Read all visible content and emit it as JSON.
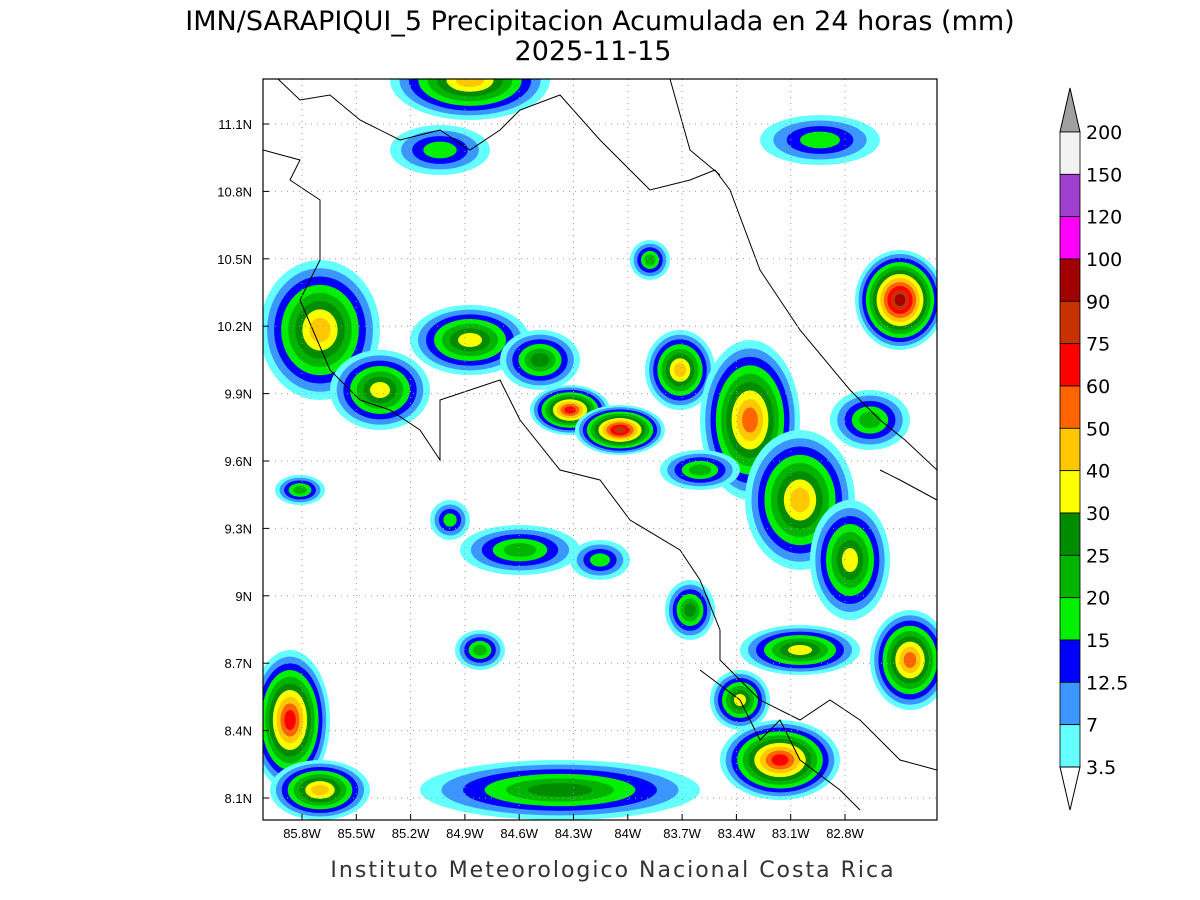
{
  "title": "IMN/SARAPIQUI_5 Precipitacion Acumulada en 24 horas (mm)",
  "subtitle": "2025-11-15",
  "lon_labels": [
    "85.8W",
    "85.5W",
    "85.2W",
    "84.9W",
    "84.6W",
    "84.3W",
    "84W",
    "83.7W",
    "83.4W",
    "83.1W",
    "82.8W"
  ],
  "lat_labels": [
    "11.1N",
    "10.8N",
    "10.5N",
    "10.2N",
    "9.9N",
    "9.6N",
    "9.3N",
    "9N",
    "8.7N",
    "8.4N",
    "8.1N"
  ],
  "colorbar": {
    "labels": [
      200,
      150,
      120,
      100,
      90,
      75,
      60,
      50,
      40,
      30,
      25,
      20,
      15,
      12.5,
      7,
      3.5
    ],
    "colors": [
      "#f2f2f2",
      "#a040d0",
      "#ff00ff",
      "#a00000",
      "#c83200",
      "#ff0000",
      "#ff6400",
      "#ffc800",
      "#ffff00",
      "#008c00",
      "#00b400",
      "#00f000",
      "#0000ff",
      "#3c96ff",
      "#64ffff"
    ]
  },
  "footer": "Instituto Meteorologico Nacional Costa Rica"
}
